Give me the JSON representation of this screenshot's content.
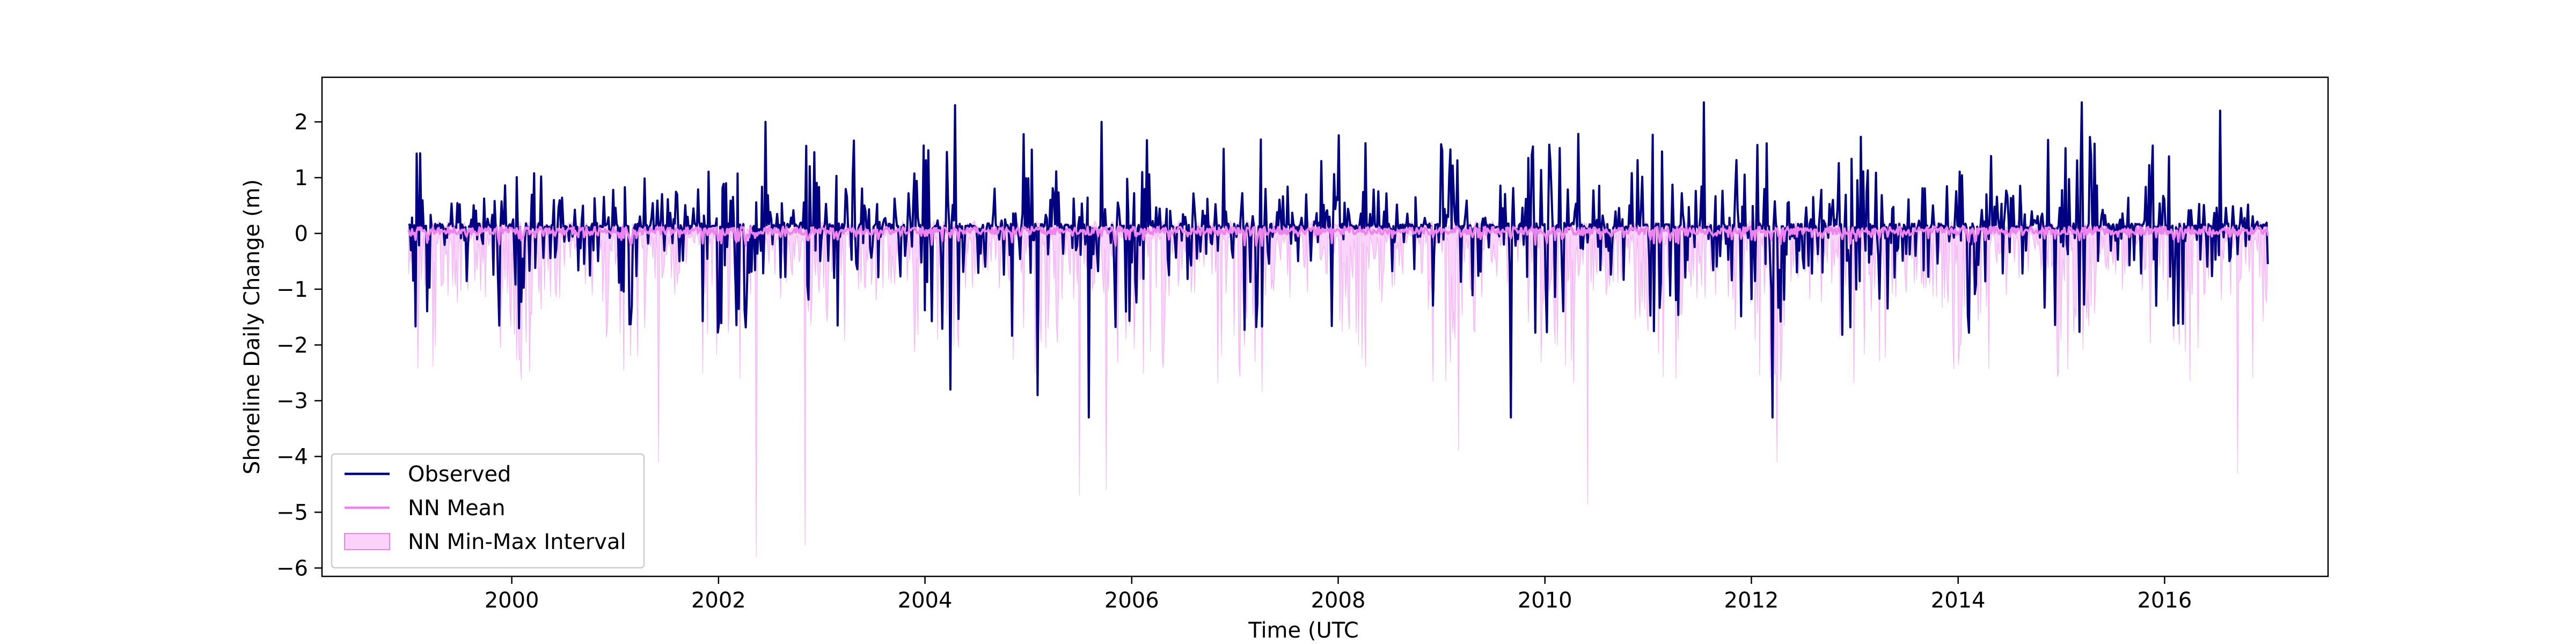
{
  "chart_data": {
    "type": "line",
    "title": "",
    "xlabel": "Time (UTC",
    "ylabel": "Shoreline Daily Change (m)",
    "xlim": [
      "1998-03-01",
      "2017-08-01"
    ],
    "ylim": [
      -6.15,
      2.8
    ],
    "x_range": [
      "1999-01-01",
      "2016-12-31"
    ],
    "xticks": [
      {
        "value": "2000-01-01",
        "label": "2000"
      },
      {
        "value": "2002-01-01",
        "label": "2002"
      },
      {
        "value": "2004-01-01",
        "label": "2004"
      },
      {
        "value": "2006-01-01",
        "label": "2006"
      },
      {
        "value": "2008-01-01",
        "label": "2008"
      },
      {
        "value": "2010-01-01",
        "label": "2010"
      },
      {
        "value": "2012-01-01",
        "label": "2012"
      },
      {
        "value": "2014-01-01",
        "label": "2014"
      },
      {
        "value": "2016-01-01",
        "label": "2016"
      }
    ],
    "yticks": [
      {
        "value": 2,
        "label": "2"
      },
      {
        "value": 1,
        "label": "1"
      },
      {
        "value": 0,
        "label": "0"
      },
      {
        "value": -1,
        "label": "−1"
      },
      {
        "value": -2,
        "label": "−2"
      },
      {
        "value": -3,
        "label": "−3"
      },
      {
        "value": -4,
        "label": "−4"
      },
      {
        "value": -5,
        "label": "−5"
      },
      {
        "value": -6,
        "label": "−6"
      }
    ],
    "grid": false,
    "legend_position": "lower-left",
    "series": [
      {
        "name": "Observed",
        "kind": "line",
        "color": "#000080",
        "y_range": [
          -3.3,
          2.35
        ],
        "notable_peaks": [
          {
            "x": "2004-04-15",
            "y": 2.3
          },
          {
            "x": "2011-07-15",
            "y": 2.35
          },
          {
            "x": "2015-03-15",
            "y": 2.35
          },
          {
            "x": "2016-07-15",
            "y": 2.2
          },
          {
            "x": "2002-06-15",
            "y": 2.0
          },
          {
            "x": "2005-09-15",
            "y": 2.0
          }
        ],
        "notable_troughs": [
          {
            "x": "2005-08-01",
            "y": -3.3
          },
          {
            "x": "2009-09-01",
            "y": -3.3
          },
          {
            "x": "2012-03-15",
            "y": -3.3
          },
          {
            "x": "2004-04-01",
            "y": -2.8
          },
          {
            "x": "2005-02-01",
            "y": -2.9
          }
        ]
      },
      {
        "name": "NN Mean",
        "kind": "line",
        "color": "#ee82ee",
        "y_range": [
          -0.4,
          0.25
        ]
      },
      {
        "name": "NN Min-Max Interval",
        "kind": "band",
        "color": "#ee82ee",
        "opacity": 0.35,
        "lower_extremes": [
          {
            "x": "2002-05-15",
            "y": -5.8
          },
          {
            "x": "2002-11-01",
            "y": -5.6
          },
          {
            "x": "2005-07-01",
            "y": -4.7
          },
          {
            "x": "2005-10-01",
            "y": -4.6
          },
          {
            "x": "2010-06-01",
            "y": -4.85
          },
          {
            "x": "2016-09-15",
            "y": -4.3
          },
          {
            "x": "2012-04-01",
            "y": -4.1
          },
          {
            "x": "2001-06-01",
            "y": -4.1
          },
          {
            "x": "2009-03-01",
            "y": -3.9
          }
        ]
      }
    ]
  }
}
